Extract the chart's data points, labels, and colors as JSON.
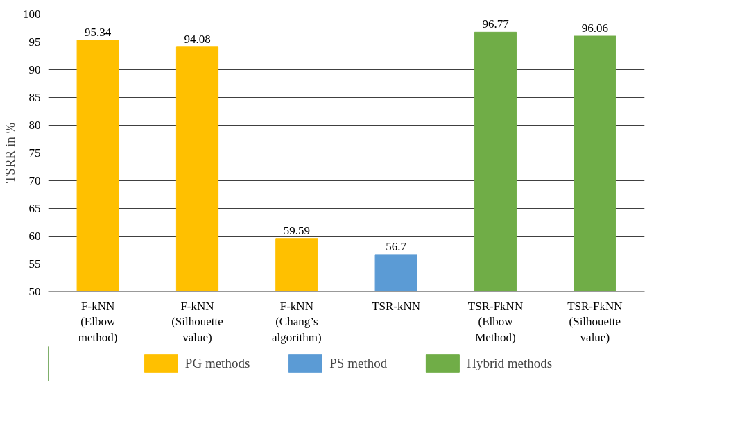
{
  "chart_data": {
    "type": "bar",
    "ylabel": "TSRR in %",
    "categories": [
      "F-kNN\n(Elbow\nmethod)",
      "F-kNN\n(Silhouette\nvalue)",
      "F-kNN\n(Chang’s\nalgorithm)",
      "TSR-kNN",
      "TSR-FkNN\n(Elbow\nMethod)",
      "TSR-FkNN\n(Silhouette\nvalue)"
    ],
    "series": [
      {
        "name": "PG methods",
        "color": "#ffc000",
        "values": [
          95.34,
          94.08,
          59.59,
          null,
          null,
          null
        ]
      },
      {
        "name": "PS method",
        "color": "#5b9bd5",
        "values": [
          null,
          null,
          null,
          56.7,
          null,
          null
        ]
      },
      {
        "name": "Hybrid methods",
        "color": "#70ad47",
        "values": [
          null,
          null,
          null,
          null,
          96.77,
          96.06
        ]
      }
    ],
    "ylim": [
      50,
      100
    ],
    "yticks": [
      50,
      55,
      60,
      65,
      70,
      75,
      80,
      85,
      90,
      95,
      100
    ],
    "grid": "y",
    "data_labels": true,
    "legend": "bottom"
  }
}
